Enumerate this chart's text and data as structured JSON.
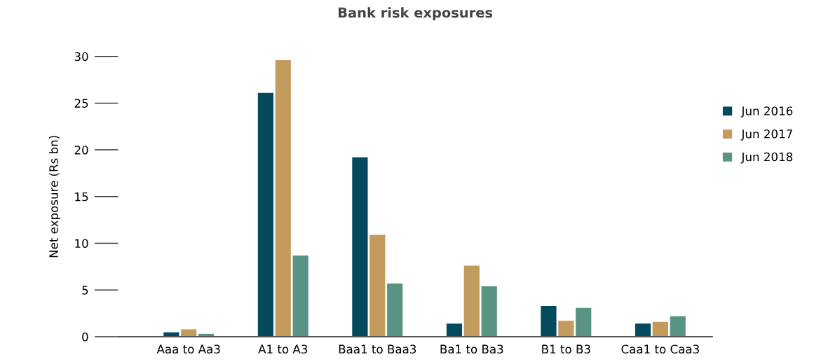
{
  "chart_data": {
    "type": "bar",
    "title": "Bank risk exposures",
    "ylabel": "Net exposure (Rs bn)",
    "categories": [
      "Aaa to Aa3",
      "A1 to A3",
      "Baa1 to Baa3",
      "Ba1 to Ba3",
      "B1 to B3",
      "Caa1 to Caa3"
    ],
    "series": [
      {
        "name": "Jun 2016",
        "color": "#034a5e",
        "values": [
          0.47,
          26.1,
          19.2,
          1.4,
          3.3,
          1.4
        ]
      },
      {
        "name": "Jun 2017",
        "color": "#c39b5c",
        "values": [
          0.79,
          29.6,
          10.9,
          7.6,
          1.7,
          1.6
        ]
      },
      {
        "name": "Jun 2018",
        "color": "#589384",
        "values": [
          0.31,
          8.7,
          5.7,
          5.4,
          3.1,
          2.2
        ]
      }
    ],
    "ylim": [
      0,
      30
    ],
    "yticks": [
      0,
      5,
      10,
      15,
      20,
      25,
      30
    ],
    "grid": false,
    "legend": "right"
  }
}
